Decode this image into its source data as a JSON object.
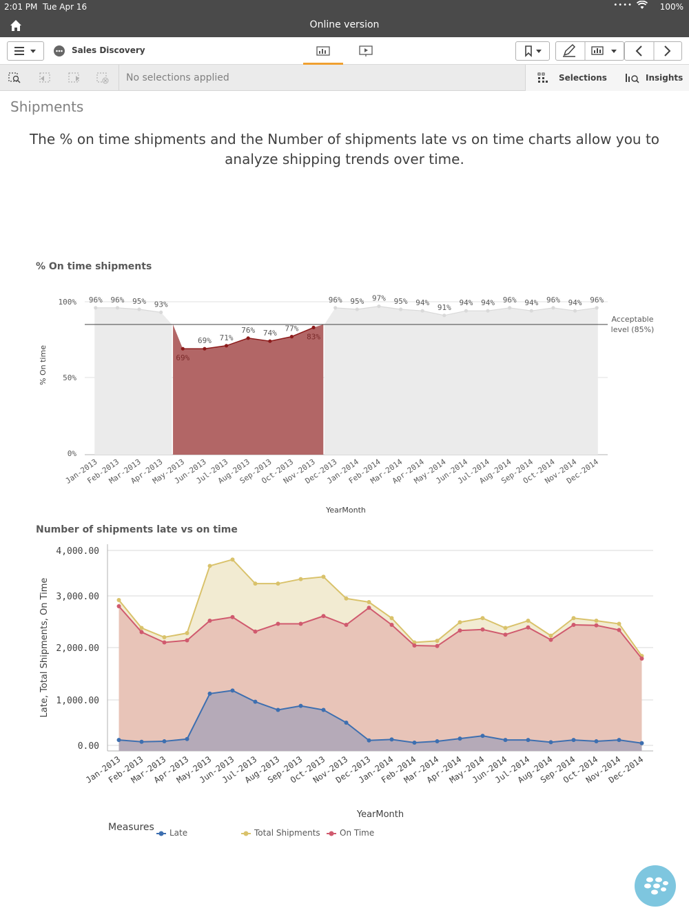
{
  "status_bar": {
    "time": "2:01 PM",
    "date": "Tue Apr 16",
    "battery": "100%"
  },
  "title_bar": {
    "title": "Online version"
  },
  "toolbar": {
    "app_name": "Sales Discovery"
  },
  "selection_bar": {
    "no_selections": "No selections applied",
    "selections_label": "Selections",
    "insights_label": "Insights"
  },
  "sheet": {
    "title": "Shipments",
    "description": "The % on time shipments and the Number of shipments late vs on time charts allow you to analyze shipping trends over time."
  },
  "chart_data": [
    {
      "type": "area",
      "title": "% On time shipments",
      "xlabel": "YearMonth",
      "ylabel": "% On time",
      "categories": [
        "Jan-2013",
        "Feb-2013",
        "Mar-2013",
        "Apr-2013",
        "May-2013",
        "Jun-2013",
        "Jul-2013",
        "Aug-2013",
        "Sep-2013",
        "Oct-2013",
        "Nov-2013",
        "Dec-2013",
        "Jan-2014",
        "Feb-2014",
        "Mar-2014",
        "Apr-2014",
        "May-2014",
        "Jun-2014",
        "Jul-2014",
        "Aug-2014",
        "Sep-2014",
        "Oct-2014",
        "Nov-2014",
        "Dec-2014"
      ],
      "values": [
        96,
        96,
        95,
        93,
        69,
        69,
        71,
        76,
        74,
        77,
        83,
        96,
        95,
        97,
        95,
        94,
        91,
        94,
        94,
        96,
        94,
        96,
        94,
        96
      ],
      "data_labels": [
        "96%",
        "96%",
        "95%",
        "93%",
        "69%",
        "69%",
        "71%",
        "76%",
        "74%",
        "77%",
        "83%",
        "96%",
        "95%",
        "97%",
        "95%",
        "94%",
        "91%",
        "94%",
        "94%",
        "96%",
        "94%",
        "96%",
        "94%",
        "96%"
      ],
      "yticks": [
        "0%",
        "50%",
        "100%"
      ],
      "ylim": [
        0,
        100
      ],
      "reference_line": {
        "value": 85,
        "label": "Acceptable level (85%)"
      },
      "colors": {
        "above": "#ebebeb",
        "below": "#b26666",
        "below_line": "#8c1a1a",
        "point_above": "#d9d9d9"
      }
    },
    {
      "type": "area",
      "title": "Number of shipments late vs on time",
      "xlabel": "YearMonth",
      "ylabel": "Late, Total Shipments, On Time",
      "categories": [
        "Jan-2013",
        "Feb-2013",
        "Mar-2013",
        "Apr-2013",
        "May-2013",
        "Jun-2013",
        "Jul-2013",
        "Aug-2013",
        "Sep-2013",
        "Oct-2013",
        "Nov-2013",
        "Dec-2013",
        "Jan-2014",
        "Feb-2014",
        "Mar-2014",
        "Apr-2014",
        "May-2014",
        "Jun-2014",
        "Jul-2014",
        "Aug-2014",
        "Sep-2014",
        "Oct-2014",
        "Nov-2014",
        "Dec-2014"
      ],
      "yticks": [
        "0.00",
        "1,000.00",
        "2,000.00",
        "3,000.00",
        "4,000.00"
      ],
      "ylim": [
        0,
        4000
      ],
      "legend_title": "Measures",
      "series": [
        {
          "name": "Total Shipments",
          "color": "#d9c26b",
          "fill": "#f2ebd2",
          "values": [
            2920,
            2380,
            2200,
            2280,
            3660,
            3800,
            3270,
            3270,
            3370,
            3420,
            2950,
            2880,
            2570,
            2100,
            2130,
            2490,
            2570,
            2380,
            2520,
            2230,
            2570,
            2520,
            2460,
            1840
          ]
        },
        {
          "name": "On Time",
          "color": "#d05a6e",
          "fill": "#e8c4b8",
          "values": [
            2800,
            2300,
            2100,
            2140,
            2520,
            2590,
            2310,
            2460,
            2460,
            2610,
            2440,
            2770,
            2440,
            2040,
            2030,
            2330,
            2350,
            2250,
            2390,
            2150,
            2440,
            2430,
            2340,
            1790
          ]
        },
        {
          "name": "Late",
          "color": "#3d6fb0",
          "fill": "#b5aab8",
          "values": [
            120,
            80,
            90,
            140,
            1120,
            1180,
            960,
            780,
            870,
            780,
            500,
            110,
            130,
            60,
            90,
            150,
            210,
            120,
            120,
            70,
            120,
            90,
            120,
            50
          ]
        }
      ]
    }
  ],
  "icons": {
    "home": "home-icon",
    "menu": "hamburger-icon",
    "app": "app-icon",
    "sheet": "sheet-icon",
    "story": "presentation-icon",
    "bookmark": "bookmark-icon",
    "edit": "pencil-icon",
    "chart": "chart-icon",
    "back": "chevron-left-icon",
    "forward": "chevron-right-icon",
    "fab": "blackberry-icon"
  }
}
